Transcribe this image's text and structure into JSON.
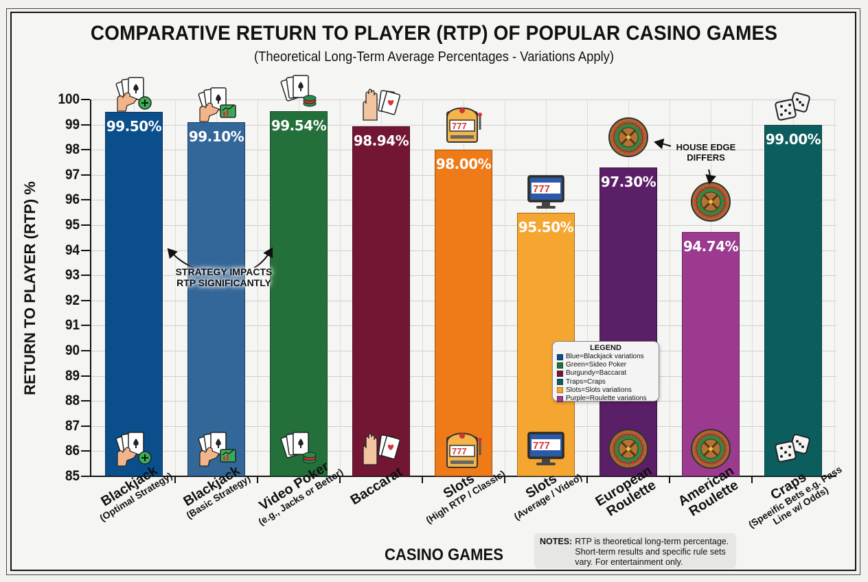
{
  "header": {
    "title": "COMPARATIVE RETURN TO PLAYER (RTP) OF POPULAR CASINO GAMES",
    "subtitle": "(Theoretical Long-Term Average Percentages - Variations Apply)"
  },
  "axes": {
    "ylabel": "RETURN TO PLAYER (RTP) %",
    "xlabel": "CASINO GAMES",
    "yticks": [
      "100",
      "99",
      "98",
      "97",
      "96",
      "95",
      "94",
      "93",
      "92",
      "91",
      "90",
      "89",
      "88",
      "87",
      "86",
      "85"
    ]
  },
  "bars": [
    {
      "main": "Blackjack",
      "sub": "(Optimal Strategy)",
      "value_label": "99.50%",
      "color": "#0a4f8c",
      "icon": "cards-hand-plus-icon"
    },
    {
      "main": "Blackjack",
      "sub": "(Basic Strategy)",
      "value_label": "99.10%",
      "color": "#336699",
      "icon": "cards-hand-chart-icon"
    },
    {
      "main": "Video Poker",
      "sub": "(e.g., Jacks or Better)",
      "value_label": "99.54%",
      "color": "#23703a",
      "icon": "cards-chips-icon"
    },
    {
      "main": "Baccarat",
      "sub": "",
      "value_label": "98.94%",
      "color": "#721634",
      "icon": "hand-cards-icon"
    },
    {
      "main": "Slots",
      "sub": "(High RTP / Classic)",
      "value_label": "98.00%",
      "color": "#ef7a18",
      "icon": "slot-machine-icon"
    },
    {
      "main": "Slots",
      "sub": "(Average / Video)",
      "value_label": "95.50%",
      "color": "#f5a631",
      "icon": "video-slot-monitor-icon"
    },
    {
      "main": "European Roulette",
      "sub": "",
      "value_label": "97.30%",
      "color": "#5b1f68",
      "icon": "roulette-wheel-icon"
    },
    {
      "main": "American Roulette",
      "sub": "",
      "value_label": "94.74%",
      "color": "#9b3a8f",
      "icon": "roulette-wheel-icon"
    },
    {
      "main": "Craps",
      "sub": "(Speeific Bets e.g. Pass Line w/ Odds)",
      "value_label": "99.00%",
      "color": "#0c5e5e",
      "icon": "dice-icon"
    }
  ],
  "annotations": {
    "strategy": "STRATEGY IMPACTS RTP SIGNIFICANTLY",
    "house_edge": "HOUSE EDGE DIFFERS"
  },
  "legend": {
    "title": "LEGEND",
    "items": [
      {
        "label": "Blue=Blackjack variations",
        "color": "#0a4f8c"
      },
      {
        "label": "Green=Sideo Poker",
        "color": "#23703a"
      },
      {
        "label": "Burgundy=Baccarat",
        "color": "#721634"
      },
      {
        "label": "Traps=Craps",
        "color": "#0c5e5e"
      },
      {
        "label": "Slots=Slots variations",
        "color": "#f5a631"
      },
      {
        "label": "Purple=Roulette variations",
        "color": "#9b3a8f"
      }
    ]
  },
  "notes": {
    "label": "NOTES:",
    "text": "RTP is theoretical long-term percentage. Short-term results and specific rule sets vary. For entertainment only."
  },
  "chart_data": {
    "type": "bar",
    "title": "COMPARATIVE RETURN TO PLAYER (RTP) OF POPULAR CASINO GAMES",
    "subtitle": "(Theoretical Long-Term Average Percentages - Variations Apply)",
    "xlabel": "CASINO GAMES",
    "ylabel": "RETURN TO PLAYER (RTP) %",
    "ylim": [
      85,
      100
    ],
    "yticks": [
      85,
      86,
      87,
      88,
      89,
      90,
      91,
      92,
      93,
      94,
      95,
      96,
      97,
      98,
      99,
      100
    ],
    "grid": true,
    "categories": [
      "Blackjack (Optimal Strategy)",
      "Blackjack (Basic Strategy)",
      "Video Poker (e.g., Jacks or Better)",
      "Baccarat",
      "Slots (High RTP / Classic)",
      "Slots (Average / Video)",
      "European Roulette",
      "American Roulette",
      "Craps (Speeific Bets e.g. Pass Line w/ Odds)"
    ],
    "values": [
      99.5,
      99.1,
      99.54,
      98.94,
      98.0,
      95.5,
      97.3,
      94.74,
      99.0
    ],
    "colors": [
      "#0a4f8c",
      "#336699",
      "#23703a",
      "#721634",
      "#ef7a18",
      "#f5a631",
      "#5b1f68",
      "#9b3a8f",
      "#0c5e5e"
    ],
    "legend_position": "inside, lower-right (over slots/roulette bars)",
    "legend": [
      "Blue=Blackjack variations",
      "Green=Sideo Poker",
      "Burgundy=Baccarat",
      "Traps=Craps",
      "Slots=Slots variations",
      "Purple=Roulette variations"
    ],
    "annotations": [
      "STRATEGY IMPACTS RTP SIGNIFICANTLY",
      "HOUSE EDGE DIFFERS"
    ],
    "notes": "NOTES: RTP is theoretical long-term percentage. Short-term results and specific rule sets vary. For entertainment only."
  }
}
